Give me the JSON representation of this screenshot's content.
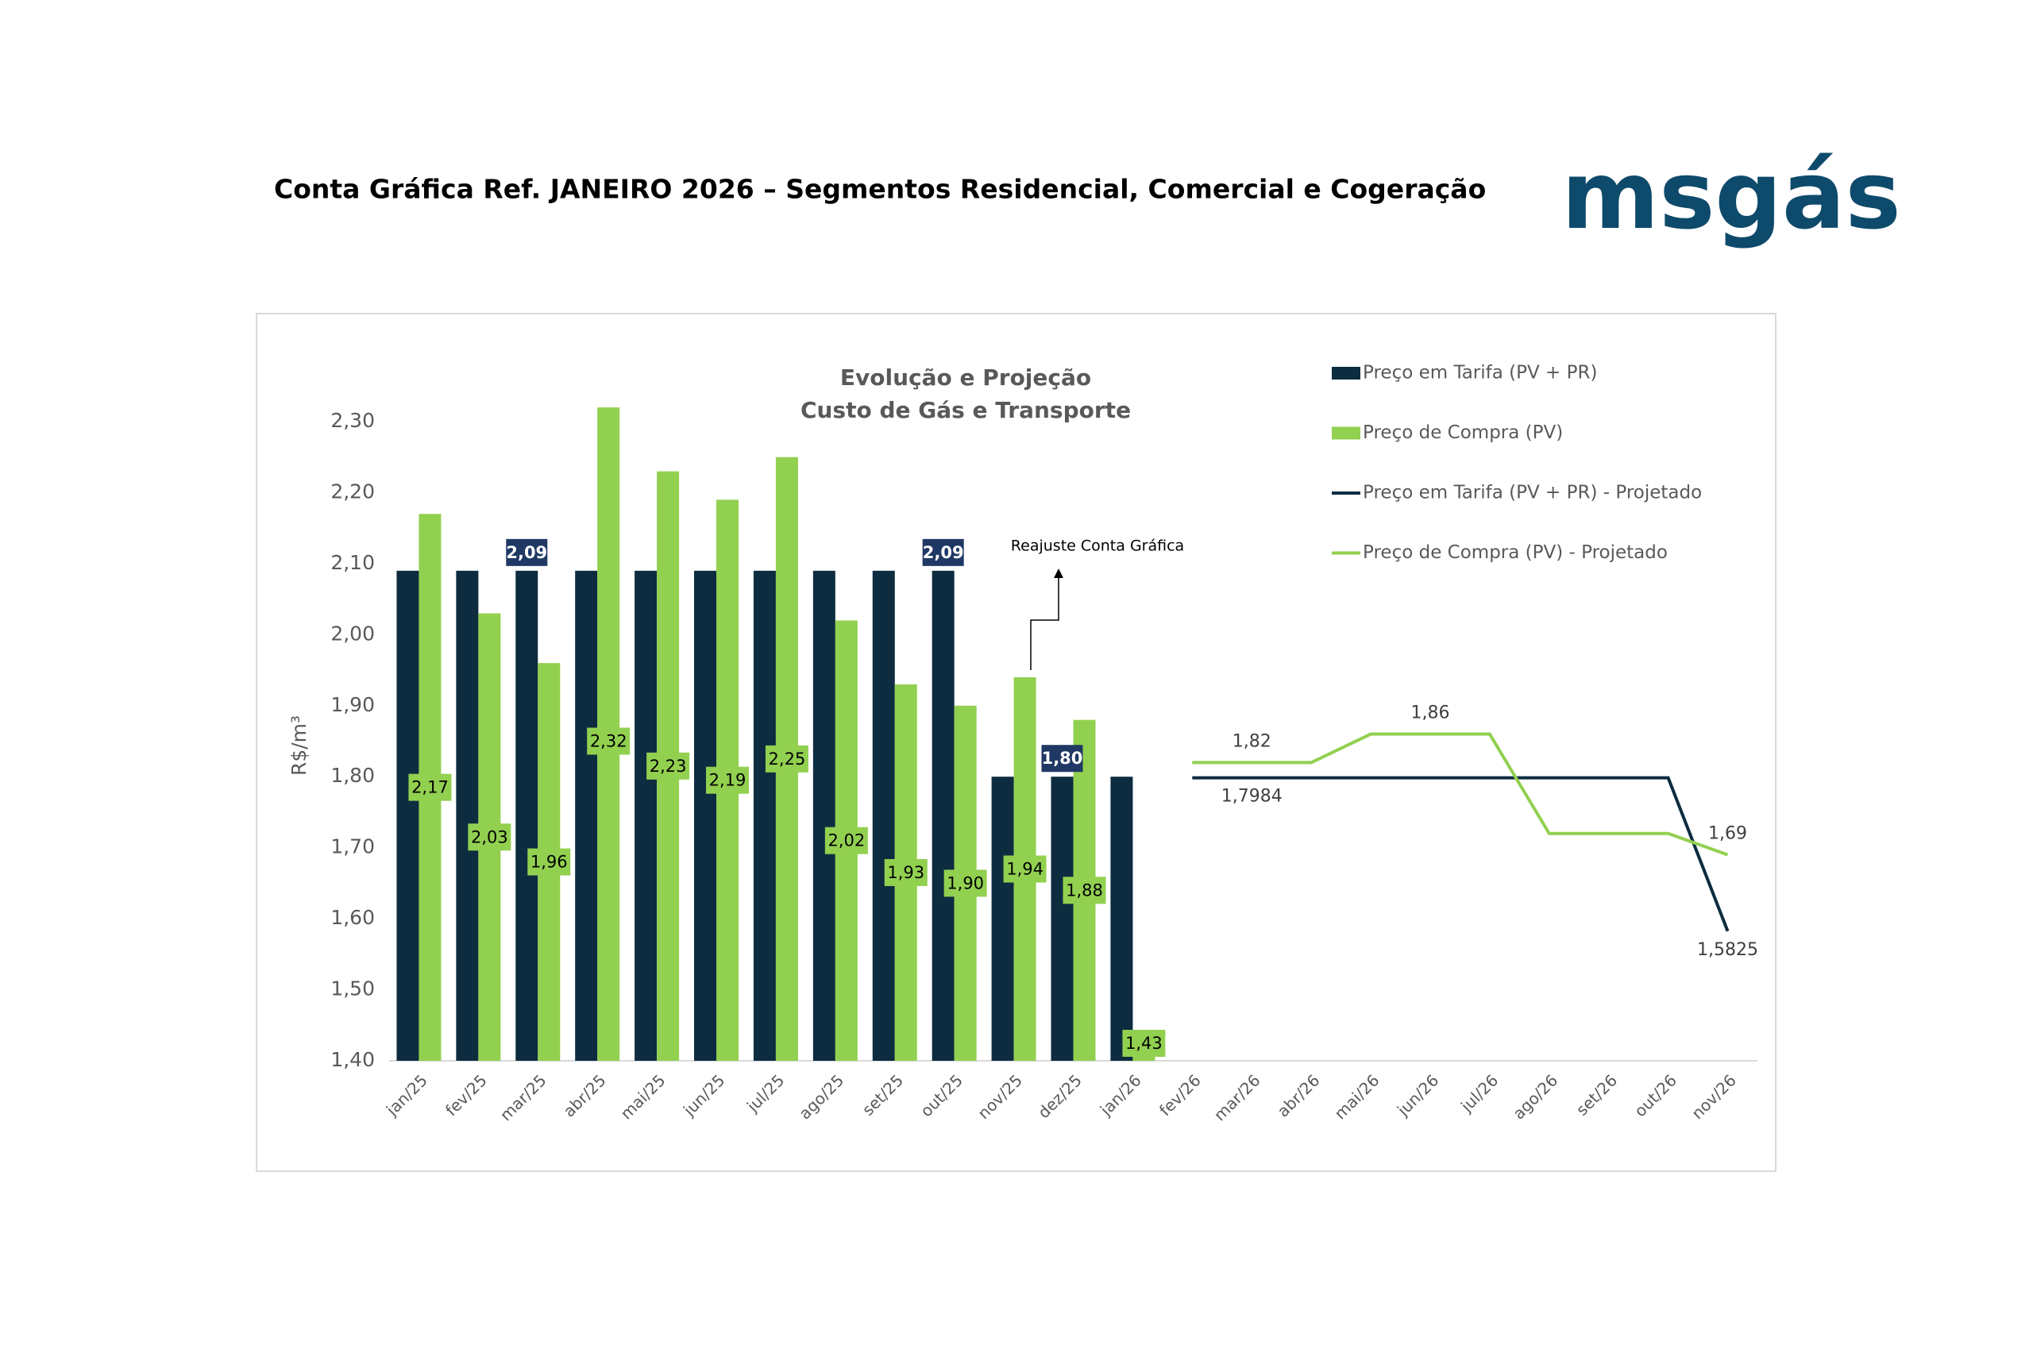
{
  "header": {
    "title": "Conta Gráfica Ref. JANEIRO 2026 – Segmentos Residencial, Comercial e Cogeração",
    "logo": "msgás"
  },
  "chart_data": {
    "type": "bar",
    "title": [
      "Evolução e Projeção",
      "Custo de Gás e Transporte"
    ],
    "y_label": "R$/m³",
    "annotation": "Reajuste Conta Gráfica",
    "categories": [
      "jan/25",
      "fev/25",
      "mar/25",
      "abr/25",
      "mai/25",
      "jun/25",
      "jul/25",
      "ago/25",
      "set/25",
      "out/25",
      "nov/25",
      "dez/25",
      "jan/26",
      "fev/26",
      "mar/26",
      "abr/26",
      "mai/26",
      "jun/26",
      "jul/26",
      "ago/26",
      "set/26",
      "out/26",
      "nov/26"
    ],
    "ylim": [
      1.4,
      2.3
    ],
    "yticks": [
      {
        "value": 1.4,
        "label": "1,40"
      },
      {
        "value": 1.5,
        "label": "1,50"
      },
      {
        "value": 1.6,
        "label": "1,60"
      },
      {
        "value": 1.7,
        "label": "1,70"
      },
      {
        "value": 1.8,
        "label": "1,80"
      },
      {
        "value": 1.9,
        "label": "1,90"
      },
      {
        "value": 2.0,
        "label": "2,00"
      },
      {
        "value": 2.1,
        "label": "2,10"
      },
      {
        "value": 2.2,
        "label": "2,20"
      },
      {
        "value": 2.3,
        "label": "2,30"
      }
    ],
    "grid": false,
    "series": [
      {
        "name": "Preço em Tarifa (PV + PR)",
        "type": "bar",
        "color": "#0d2c40",
        "values": [
          2.09,
          2.09,
          2.09,
          2.09,
          2.09,
          2.09,
          2.09,
          2.09,
          2.09,
          2.09,
          1.8,
          1.8,
          1.8,
          null,
          null,
          null,
          null,
          null,
          null,
          null,
          null,
          null,
          null
        ],
        "value_labels": [
          null,
          null,
          "2,09",
          null,
          null,
          null,
          null,
          null,
          null,
          "2,09",
          null,
          "1,80",
          null,
          null,
          null,
          null,
          null,
          null,
          null,
          null,
          null,
          null,
          null
        ]
      },
      {
        "name": "Preço de Compra (PV)",
        "type": "bar",
        "color": "#92d050",
        "values": [
          2.17,
          2.03,
          1.96,
          2.32,
          2.23,
          2.19,
          2.25,
          2.02,
          1.93,
          1.9,
          1.94,
          1.88,
          1.43,
          null,
          null,
          null,
          null,
          null,
          null,
          null,
          null,
          null,
          null
        ],
        "value_labels": [
          "2,17",
          "2,03",
          "1,96",
          "2,32",
          "2,23",
          "2,19",
          "2,25",
          "2,02",
          "1,93",
          "1,90",
          "1,94",
          "1,88",
          "1,43",
          null,
          null,
          null,
          null,
          null,
          null,
          null,
          null,
          null,
          null
        ]
      },
      {
        "name": "Preço em Tarifa (PV + PR) - Projetado",
        "type": "line",
        "color": "#0d2c40",
        "values": [
          null,
          null,
          null,
          null,
          null,
          null,
          null,
          null,
          null,
          null,
          null,
          null,
          null,
          1.7984,
          1.7984,
          1.7984,
          1.7984,
          1.7984,
          1.7984,
          1.7984,
          1.7984,
          1.7984,
          1.5825
        ],
        "value_labels": [
          null,
          null,
          null,
          null,
          null,
          null,
          null,
          null,
          null,
          null,
          null,
          null,
          null,
          null,
          "1,7984",
          null,
          null,
          null,
          null,
          null,
          null,
          null,
          "1,5825"
        ]
      },
      {
        "name": "Preço de Compra (PV) - Projetado",
        "type": "line",
        "color": "#92d050",
        "values": [
          null,
          null,
          null,
          null,
          null,
          null,
          null,
          null,
          null,
          null,
          null,
          null,
          null,
          1.82,
          1.82,
          1.82,
          1.86,
          1.86,
          1.86,
          1.72,
          1.72,
          1.72,
          1.69
        ],
        "value_labels": [
          null,
          null,
          null,
          null,
          null,
          null,
          null,
          null,
          null,
          null,
          null,
          null,
          null,
          null,
          "1,82",
          null,
          null,
          "1,86",
          null,
          null,
          null,
          null,
          "1,69"
        ]
      }
    ]
  }
}
